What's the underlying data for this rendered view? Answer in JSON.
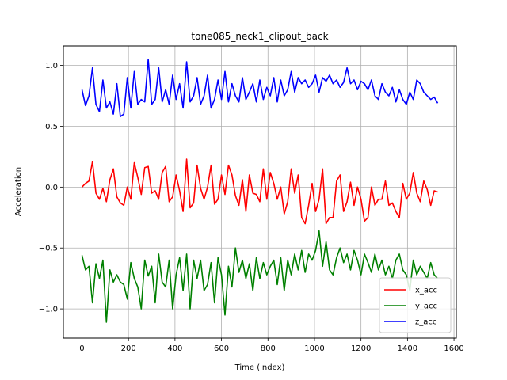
{
  "chart_data": {
    "type": "line",
    "title": "tone085_neck1_clipout_back",
    "xlabel": "Time (index)",
    "ylabel": "Acceleration",
    "xlim": [
      -80,
      1610
    ],
    "ylim": [
      -1.24,
      1.16
    ],
    "xticks": [
      0,
      200,
      400,
      600,
      800,
      1000,
      1200,
      1400,
      1600
    ],
    "xtick_labels": [
      "0",
      "200",
      "400",
      "600",
      "800",
      "1000",
      "1200",
      "1400",
      "1600"
    ],
    "yticks": [
      -1.0,
      -0.5,
      0.0,
      0.5,
      1.0
    ],
    "ytick_labels": [
      "−1.0",
      "−0.5",
      "0.0",
      "0.5",
      "1.0"
    ],
    "grid": true,
    "legend_position": "lower right",
    "series": [
      {
        "name": "x_acc",
        "color": "#ff0000",
        "x": [
          0,
          15,
          30,
          45,
          60,
          75,
          90,
          105,
          120,
          135,
          150,
          165,
          180,
          195,
          210,
          225,
          240,
          255,
          270,
          285,
          300,
          315,
          330,
          345,
          360,
          375,
          390,
          405,
          420,
          435,
          450,
          465,
          480,
          495,
          510,
          525,
          540,
          555,
          570,
          585,
          600,
          615,
          630,
          645,
          660,
          675,
          690,
          705,
          720,
          735,
          750,
          765,
          780,
          795,
          810,
          825,
          840,
          855,
          870,
          885,
          900,
          915,
          930,
          945,
          960,
          975,
          990,
          1005,
          1020,
          1035,
          1050,
          1065,
          1080,
          1095,
          1110,
          1125,
          1140,
          1155,
          1170,
          1185,
          1200,
          1215,
          1230,
          1245,
          1260,
          1275,
          1290,
          1305,
          1320,
          1335,
          1350,
          1365,
          1380,
          1395,
          1410,
          1425,
          1440,
          1455,
          1470,
          1485,
          1500,
          1515,
          1530
        ],
        "y": [
          0.0,
          0.03,
          0.05,
          0.21,
          -0.05,
          -0.1,
          -0.01,
          -0.12,
          0.06,
          0.15,
          -0.08,
          -0.13,
          -0.15,
          0.0,
          -0.1,
          0.2,
          0.08,
          -0.06,
          0.16,
          0.17,
          -0.05,
          -0.03,
          -0.1,
          0.12,
          0.17,
          -0.12,
          -0.08,
          0.1,
          -0.03,
          -0.2,
          0.23,
          -0.17,
          -0.13,
          0.18,
          -0.01,
          -0.1,
          0.0,
          0.18,
          -0.14,
          -0.1,
          0.1,
          -0.06,
          0.18,
          0.1,
          -0.07,
          -0.15,
          0.06,
          -0.2,
          0.1,
          -0.05,
          -0.06,
          -0.12,
          0.15,
          -0.1,
          0.12,
          0.03,
          -0.1,
          0.0,
          -0.22,
          -0.12,
          0.15,
          -0.05,
          0.1,
          -0.25,
          -0.3,
          -0.15,
          0.03,
          -0.2,
          -0.1,
          0.15,
          -0.3,
          -0.25,
          -0.25,
          0.05,
          0.1,
          -0.2,
          -0.12,
          0.04,
          -0.15,
          0.0,
          -0.1,
          -0.28,
          -0.25,
          0.0,
          -0.15,
          -0.1,
          -0.1,
          0.05,
          -0.15,
          -0.13,
          -0.2,
          -0.25,
          0.03,
          -0.1,
          -0.05,
          0.12,
          -0.05,
          -0.12,
          0.05,
          -0.02,
          -0.15,
          -0.03,
          -0.04
        ]
      },
      {
        "name": "y_acc",
        "color": "#008000",
        "x": [
          0,
          15,
          30,
          45,
          60,
          75,
          90,
          105,
          120,
          135,
          150,
          165,
          180,
          195,
          210,
          225,
          240,
          255,
          270,
          285,
          300,
          315,
          330,
          345,
          360,
          375,
          390,
          405,
          420,
          435,
          450,
          465,
          480,
          495,
          510,
          525,
          540,
          555,
          570,
          585,
          600,
          615,
          630,
          645,
          660,
          675,
          690,
          705,
          720,
          735,
          750,
          765,
          780,
          795,
          810,
          825,
          840,
          855,
          870,
          885,
          900,
          915,
          930,
          945,
          960,
          975,
          990,
          1005,
          1020,
          1035,
          1050,
          1065,
          1080,
          1095,
          1110,
          1125,
          1140,
          1155,
          1170,
          1185,
          1200,
          1215,
          1230,
          1245,
          1260,
          1275,
          1290,
          1305,
          1320,
          1335,
          1350,
          1365,
          1380,
          1395,
          1410,
          1425,
          1440,
          1455,
          1470,
          1485,
          1500,
          1515,
          1530
        ],
        "y": [
          -0.56,
          -0.68,
          -0.65,
          -0.95,
          -0.63,
          -0.75,
          -0.6,
          -1.11,
          -0.68,
          -0.78,
          -0.72,
          -0.78,
          -0.8,
          -0.92,
          -0.62,
          -0.75,
          -0.82,
          -1.0,
          -0.6,
          -0.73,
          -0.65,
          -0.95,
          -0.55,
          -0.78,
          -0.82,
          -0.6,
          -1.0,
          -0.72,
          -0.58,
          -0.85,
          -0.55,
          -1.0,
          -0.6,
          -0.75,
          -0.6,
          -0.85,
          -0.8,
          -0.62,
          -0.95,
          -0.58,
          -0.72,
          -1.05,
          -0.65,
          -0.82,
          -0.5,
          -0.7,
          -0.6,
          -0.75,
          -0.63,
          -0.85,
          -0.58,
          -0.75,
          -0.62,
          -0.72,
          -0.65,
          -0.6,
          -0.8,
          -0.58,
          -0.85,
          -0.6,
          -0.72,
          -0.55,
          -0.68,
          -0.52,
          -0.7,
          -0.55,
          -0.6,
          -0.52,
          -0.36,
          -0.65,
          -0.45,
          -0.68,
          -0.72,
          -0.58,
          -0.5,
          -0.62,
          -0.55,
          -0.68,
          -0.52,
          -0.6,
          -0.72,
          -0.55,
          -0.62,
          -0.7,
          -0.55,
          -0.68,
          -0.6,
          -0.72,
          -0.65,
          -0.75,
          -0.6,
          -0.55,
          -0.68,
          -0.72,
          -0.85,
          -0.6,
          -0.72,
          -0.65,
          -0.7,
          -0.75,
          -0.62,
          -0.72,
          -0.75
        ]
      },
      {
        "name": "z_acc",
        "color": "#0000ff",
        "x": [
          0,
          15,
          30,
          45,
          60,
          75,
          90,
          105,
          120,
          135,
          150,
          165,
          180,
          195,
          210,
          225,
          240,
          255,
          270,
          285,
          300,
          315,
          330,
          345,
          360,
          375,
          390,
          405,
          420,
          435,
          450,
          465,
          480,
          495,
          510,
          525,
          540,
          555,
          570,
          585,
          600,
          615,
          630,
          645,
          660,
          675,
          690,
          705,
          720,
          735,
          750,
          765,
          780,
          795,
          810,
          825,
          840,
          855,
          870,
          885,
          900,
          915,
          930,
          945,
          960,
          975,
          990,
          1005,
          1020,
          1035,
          1050,
          1065,
          1080,
          1095,
          1110,
          1125,
          1140,
          1155,
          1170,
          1185,
          1200,
          1215,
          1230,
          1245,
          1260,
          1275,
          1290,
          1305,
          1320,
          1335,
          1350,
          1365,
          1380,
          1395,
          1410,
          1425,
          1440,
          1455,
          1470,
          1485,
          1500,
          1515,
          1530
        ],
        "y": [
          0.8,
          0.67,
          0.75,
          0.98,
          0.68,
          0.62,
          0.88,
          0.65,
          0.7,
          0.6,
          0.85,
          0.58,
          0.6,
          0.9,
          0.65,
          0.95,
          0.68,
          0.72,
          0.7,
          1.05,
          0.68,
          0.72,
          0.98,
          0.7,
          0.8,
          0.68,
          0.92,
          0.72,
          0.85,
          0.65,
          1.03,
          0.7,
          0.75,
          0.9,
          0.68,
          0.75,
          0.92,
          0.65,
          0.72,
          0.88,
          0.72,
          0.95,
          0.7,
          0.85,
          0.75,
          0.7,
          0.9,
          0.72,
          0.78,
          0.85,
          0.7,
          0.88,
          0.72,
          0.82,
          0.75,
          0.9,
          0.7,
          0.88,
          0.75,
          0.8,
          0.95,
          0.78,
          0.9,
          0.85,
          0.88,
          0.82,
          0.85,
          0.92,
          0.78,
          0.9,
          0.87,
          0.92,
          0.85,
          0.88,
          0.82,
          0.86,
          0.98,
          0.85,
          0.88,
          0.8,
          0.87,
          0.85,
          0.8,
          0.88,
          0.75,
          0.72,
          0.85,
          0.78,
          0.75,
          0.82,
          0.7,
          0.8,
          0.72,
          0.68,
          0.78,
          0.72,
          0.88,
          0.85,
          0.78,
          0.75,
          0.72,
          0.74,
          0.69
        ]
      }
    ]
  }
}
